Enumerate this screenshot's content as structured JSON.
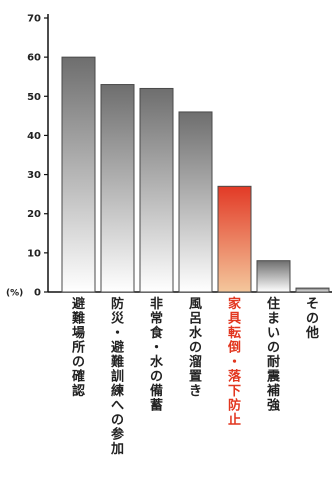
{
  "chart_data": {
    "type": "bar",
    "title": "",
    "xlabel": "",
    "ylabel": "",
    "y_unit": "(%)",
    "ylim": [
      0,
      70
    ],
    "y_ticks": [
      0,
      10,
      20,
      30,
      40,
      50,
      60,
      70
    ],
    "grid": false,
    "legend": "none",
    "categories": [
      "避難場所の確認",
      "防災・避難訓練への参加",
      "非常食・水の備蓄",
      "風呂水の溜置き",
      "家具転倒・落下防止",
      "住まいの耐震補強",
      "その他"
    ],
    "values": [
      60,
      53,
      52,
      46,
      27,
      8,
      1
    ],
    "highlight_category": "家具転倒・落下防止",
    "colors": {
      "bar_dark": "#6e6e6e",
      "bar_light": "#ffffff",
      "highlight_dark": "#e23a26",
      "highlight_light": "#f4c79c",
      "highlight_label": "#e2361f",
      "text": "#222222",
      "axis": "#111111"
    }
  }
}
